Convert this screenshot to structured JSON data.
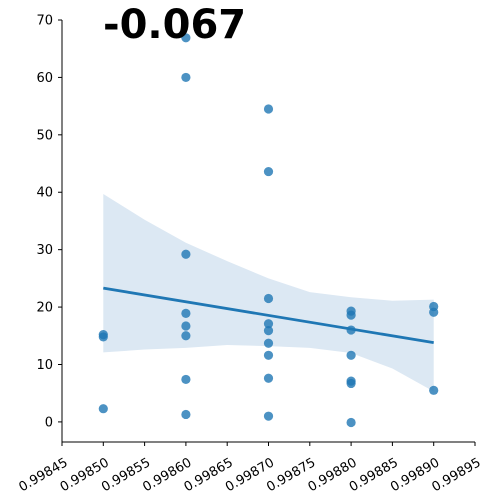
{
  "chart_data": {
    "type": "scatter",
    "title": "-0.067",
    "xlabel": "",
    "ylabel": "",
    "xlim": [
      0.99845,
      0.99895
    ],
    "ylim": [
      -3.5,
      70
    ],
    "x_ticks": [
      0.99845,
      0.9985,
      0.99855,
      0.9986,
      0.99865,
      0.9987,
      0.99875,
      0.9988,
      0.99885,
      0.9989,
      0.99895
    ],
    "x_tick_labels": [
      "0.99845",
      "0.99850",
      "0.99855",
      "0.99860",
      "0.99865",
      "0.99870",
      "0.99875",
      "0.99880",
      "0.99885",
      "0.99890",
      "0.99895"
    ],
    "y_ticks": [
      0,
      10,
      20,
      30,
      40,
      50,
      60,
      70
    ],
    "y_tick_labels": [
      "0",
      "10",
      "20",
      "30",
      "40",
      "50",
      "60",
      "70"
    ],
    "grid": false,
    "points": [
      {
        "x": 0.9985,
        "y": 15.2
      },
      {
        "x": 0.9985,
        "y": 14.8
      },
      {
        "x": 0.9985,
        "y": 2.3
      },
      {
        "x": 0.9986,
        "y": 66.9
      },
      {
        "x": 0.9986,
        "y": 60.0
      },
      {
        "x": 0.9986,
        "y": 29.2
      },
      {
        "x": 0.9986,
        "y": 18.9
      },
      {
        "x": 0.9986,
        "y": 16.7
      },
      {
        "x": 0.9986,
        "y": 15.0
      },
      {
        "x": 0.9986,
        "y": 7.4
      },
      {
        "x": 0.9986,
        "y": 1.3
      },
      {
        "x": 0.9987,
        "y": 54.5
      },
      {
        "x": 0.9987,
        "y": 43.6
      },
      {
        "x": 0.9987,
        "y": 21.5
      },
      {
        "x": 0.9987,
        "y": 17.1
      },
      {
        "x": 0.9987,
        "y": 15.9
      },
      {
        "x": 0.9987,
        "y": 13.7
      },
      {
        "x": 0.9987,
        "y": 11.6
      },
      {
        "x": 0.9987,
        "y": 7.6
      },
      {
        "x": 0.9987,
        "y": 1.0
      },
      {
        "x": 0.9988,
        "y": 19.3
      },
      {
        "x": 0.9988,
        "y": 18.6
      },
      {
        "x": 0.9988,
        "y": 16.0
      },
      {
        "x": 0.9988,
        "y": 11.6
      },
      {
        "x": 0.9988,
        "y": 7.1
      },
      {
        "x": 0.9988,
        "y": 6.7
      },
      {
        "x": 0.9988,
        "y": -0.1
      },
      {
        "x": 0.9989,
        "y": 20.1
      },
      {
        "x": 0.9989,
        "y": 19.1
      },
      {
        "x": 0.9989,
        "y": 5.5
      }
    ],
    "regression": {
      "x": [
        0.9985,
        0.9989
      ],
      "y": [
        23.3,
        13.8
      ]
    },
    "confidence_band": {
      "x": [
        0.9985,
        0.99855,
        0.9986,
        0.99865,
        0.9987,
        0.99875,
        0.9988,
        0.99885,
        0.9989
      ],
      "upper": [
        39.7,
        35.2,
        31.2,
        28.0,
        25.0,
        22.6,
        21.7,
        21.1,
        21.3
      ],
      "lower": [
        12.1,
        12.6,
        12.9,
        13.4,
        13.2,
        12.9,
        12.0,
        9.3,
        5.3
      ]
    },
    "colors": {
      "points": "#1f77b4",
      "line": "#1f77b4",
      "band": "#dce8f3",
      "axes": "#000000"
    }
  }
}
